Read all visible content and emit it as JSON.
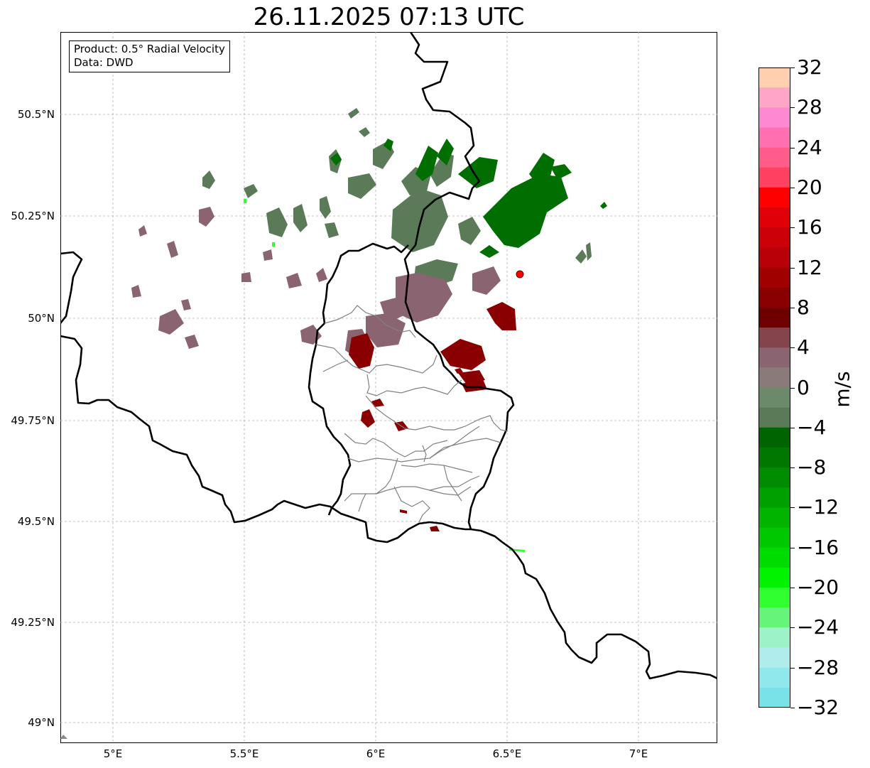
{
  "title": "26.11.2025 07:13 UTC",
  "info": {
    "product": "Product: 0.5° Radial Velocity",
    "source": "Data: DWD"
  },
  "lat_labels": [
    "50.5°N",
    "50.25°N",
    "50°N",
    "49.75°N",
    "49.5°N",
    "49.25°N",
    "49°N"
  ],
  "lon_labels": [
    "5°E",
    "5.5°E",
    "6°E",
    "6.5°E",
    "7°E"
  ],
  "colorbar": {
    "unit": "m/s",
    "ticks": [
      "32",
      "28",
      "24",
      "20",
      "16",
      "12",
      "8",
      "4",
      "0",
      "−4",
      "−8",
      "−12",
      "−16",
      "−20",
      "−24",
      "−28",
      "−32"
    ],
    "colors_top_to_bottom": [
      "#ffcfb0",
      "#ffa6c8",
      "#ff88d2",
      "#ff70b0",
      "#ff5c8a",
      "#ff4060",
      "#ff0000",
      "#e00008",
      "#cc0008",
      "#b80008",
      "#a00000",
      "#8a0000",
      "#6e0000",
      "#84444c",
      "#8a6470",
      "#8a7a7a",
      "#6a8a6a",
      "#5a7a58",
      "#006400",
      "#007800",
      "#008c00",
      "#00a000",
      "#00b400",
      "#00c800",
      "#00dc00",
      "#00f400",
      "#30ff30",
      "#66f57a",
      "#9ef2c8",
      "#b0ecec",
      "#90e8ec",
      "#78e2e8"
    ]
  },
  "map": {
    "extent_lon": [
      4.8,
      7.3
    ],
    "extent_lat": [
      48.95,
      50.7
    ],
    "radar_site": {
      "lon": 6.548,
      "lat": 50.11
    }
  }
}
